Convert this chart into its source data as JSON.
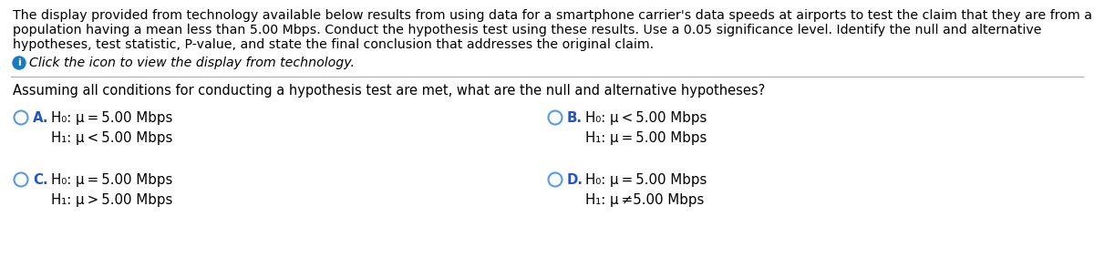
{
  "bg_color": "#ffffff",
  "text_color": "#000000",
  "label_color": "#2255cc",
  "circle_color": "#5599ee",
  "info_color": "#1a7abf",
  "paragraph_lines": [
    "The display provided from technology available below results from using data for a smartphone carrier's data speeds at airports to test the claim that they are from a",
    "population having a mean less than 5.00 Mbps. Conduct the hypothesis test using these results. Use a 0.05 significance level. Identify the null and alternative",
    "hypotheses, test statistic, P-value, and state the final conclusion that addresses the original claim."
  ],
  "click_text": "Click the icon to view the display from technology.",
  "question": "Assuming all conditions for conducting a hypothesis test are met, what are the null and alternative hypotheses?",
  "options": [
    {
      "label": "A.",
      "line1": "H₀: μ = 5.00 Mbps",
      "line2": "H₁: μ < 5.00 Mbps",
      "col": 0,
      "row": 0
    },
    {
      "label": "B.",
      "line1": "H₀: μ < 5.00 Mbps",
      "line2": "H₁: μ = 5.00 Mbps",
      "col": 1,
      "row": 0
    },
    {
      "label": "C.",
      "line1": "H₀: μ = 5.00 Mbps",
      "line2": "H₁: μ > 5.00 Mbps",
      "col": 0,
      "row": 1
    },
    {
      "label": "D.",
      "line1": "H₀: μ = 5.00 Mbps",
      "line2": "H₁: μ ≠5.00 Mbps",
      "col": 1,
      "row": 1
    }
  ],
  "para_fontsize": 10.2,
  "click_fontsize": 10.2,
  "question_fontsize": 10.5,
  "option_fontsize": 10.8,
  "label_fontsize": 10.8
}
